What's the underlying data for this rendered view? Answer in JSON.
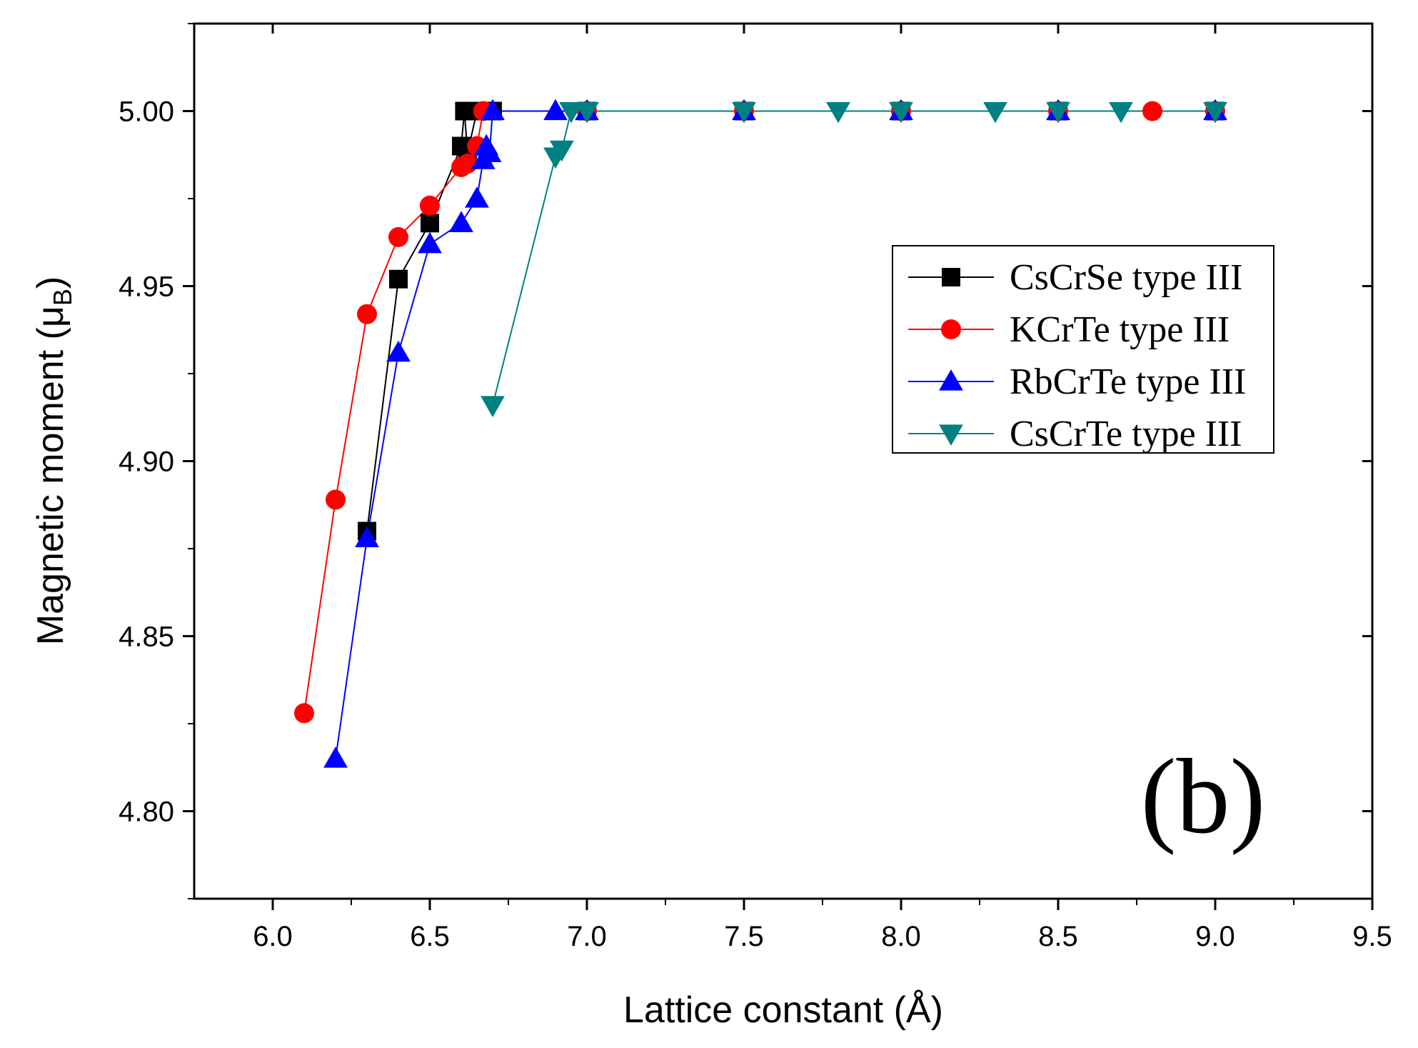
{
  "chart_data": {
    "type": "line",
    "xlabel": "Lattice constant (Å)",
    "ylabel_main": "Magnetic moment (μ",
    "ylabel_sub": "B",
    "ylabel_close": ")",
    "panel_label": "(b)",
    "xlim": [
      5.75,
      9.5
    ],
    "ylim": [
      4.775,
      5.025
    ],
    "xticks": [
      6.0,
      6.5,
      7.0,
      7.5,
      8.0,
      8.5,
      9.0,
      9.5
    ],
    "xtick_labels": [
      "6.0",
      "6.5",
      "7.0",
      "7.5",
      "8.0",
      "8.5",
      "9.0",
      "9.5"
    ],
    "yticks": [
      4.8,
      4.85,
      4.9,
      4.95,
      5.0
    ],
    "ytick_labels": [
      "4.80",
      "4.85",
      "4.90",
      "4.95",
      "5.00"
    ],
    "legend_position": "upper-right",
    "grid": false,
    "series": [
      {
        "name": "CsCrSe type III",
        "color": "#000000",
        "marker": "square",
        "x": [
          6.3,
          6.4,
          6.5,
          6.6,
          6.61,
          6.62,
          6.65,
          6.7,
          7.0,
          7.5,
          8.0,
          8.5,
          9.0
        ],
        "y": [
          4.88,
          4.952,
          4.968,
          4.99,
          5.0,
          4.988,
          5.0,
          5.0,
          5.0,
          5.0,
          5.0,
          5.0,
          5.0
        ]
      },
      {
        "name": "KCrTe type III",
        "color": "#ff0000",
        "marker": "circle",
        "x": [
          6.1,
          6.2,
          6.3,
          6.4,
          6.5,
          6.6,
          6.62,
          6.65,
          6.67,
          7.0,
          7.5,
          8.0,
          8.5,
          8.8,
          9.0
        ],
        "y": [
          4.828,
          4.889,
          4.942,
          4.964,
          4.973,
          4.984,
          4.985,
          4.99,
          5.0,
          5.0,
          5.0,
          5.0,
          5.0,
          5.0,
          5.0
        ]
      },
      {
        "name": "RbCrTe type III",
        "color": "#0000ff",
        "marker": "triangle-up",
        "x": [
          6.2,
          6.3,
          6.4,
          6.5,
          6.6,
          6.65,
          6.67,
          6.68,
          6.69,
          6.7,
          6.9,
          7.0,
          7.5,
          8.0,
          8.5,
          9.0
        ],
        "y": [
          4.815,
          4.878,
          4.931,
          4.962,
          4.968,
          4.975,
          4.986,
          4.99,
          4.988,
          5.0,
          5.0,
          5.0,
          5.0,
          5.0,
          5.0,
          5.0
        ]
      },
      {
        "name": "CsCrTe type III",
        "color": "#008080",
        "marker": "triangle-down",
        "x": [
          6.7,
          6.9,
          6.92,
          6.95,
          7.0,
          7.5,
          7.8,
          8.0,
          8.3,
          8.5,
          8.7,
          9.0
        ],
        "y": [
          4.916,
          4.987,
          4.989,
          5.0,
          5.0,
          5.0,
          5.0,
          5.0,
          5.0,
          5.0,
          5.0,
          5.0
        ]
      }
    ]
  }
}
